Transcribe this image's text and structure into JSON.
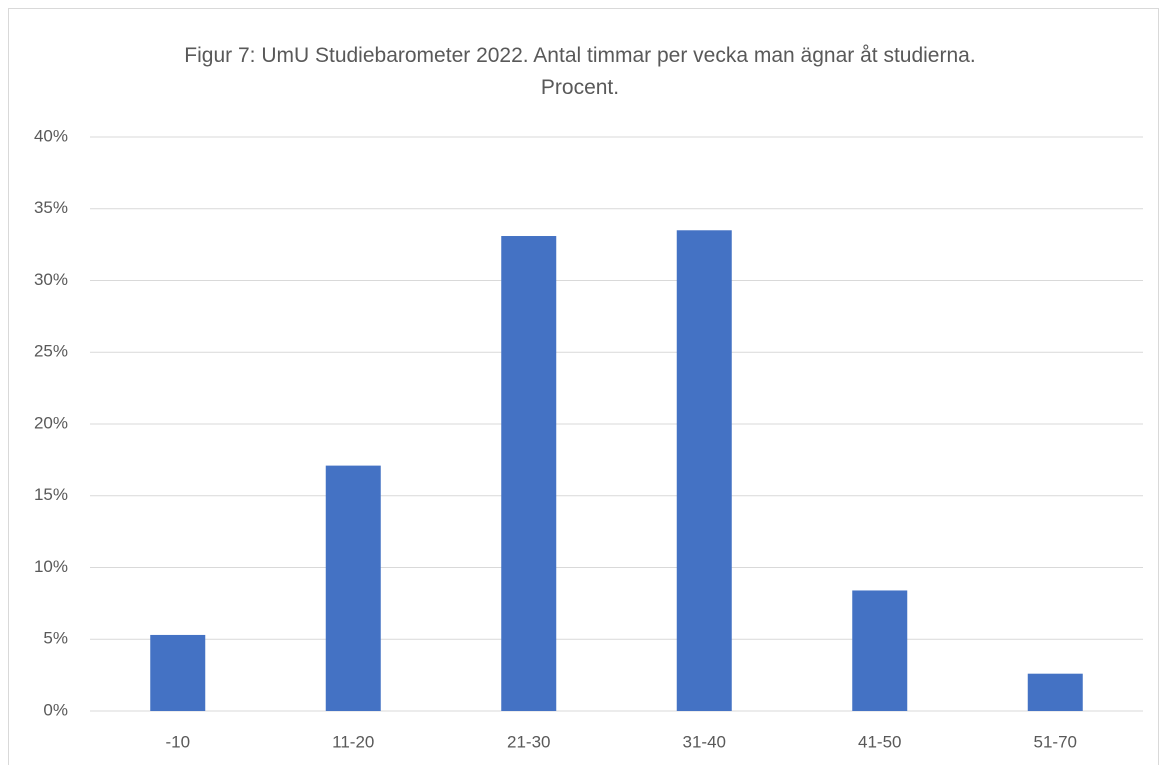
{
  "chart_data": {
    "type": "bar",
    "title": "Figur 7: UmU Studiebarometer 2022. Antal timmar per vecka man ägnar åt studierna. Procent.",
    "categories": [
      "-10",
      "11-20",
      "21-30",
      "31-40",
      "41-50",
      "51-70"
    ],
    "values": [
      5.3,
      17.1,
      33.1,
      33.5,
      8.4,
      2.6
    ],
    "color": "#4472c4",
    "ylim": [
      0,
      40
    ],
    "yticks": [
      {
        "value": 0,
        "label": "0%"
      },
      {
        "value": 5,
        "label": "5%"
      },
      {
        "value": 10,
        "label": "10%"
      },
      {
        "value": 15,
        "label": "15%"
      },
      {
        "value": 20,
        "label": "20%"
      },
      {
        "value": 25,
        "label": "25%"
      },
      {
        "value": 30,
        "label": "30%"
      },
      {
        "value": 35,
        "label": "35%"
      },
      {
        "value": 40,
        "label": "40%"
      }
    ],
    "grid": true
  }
}
